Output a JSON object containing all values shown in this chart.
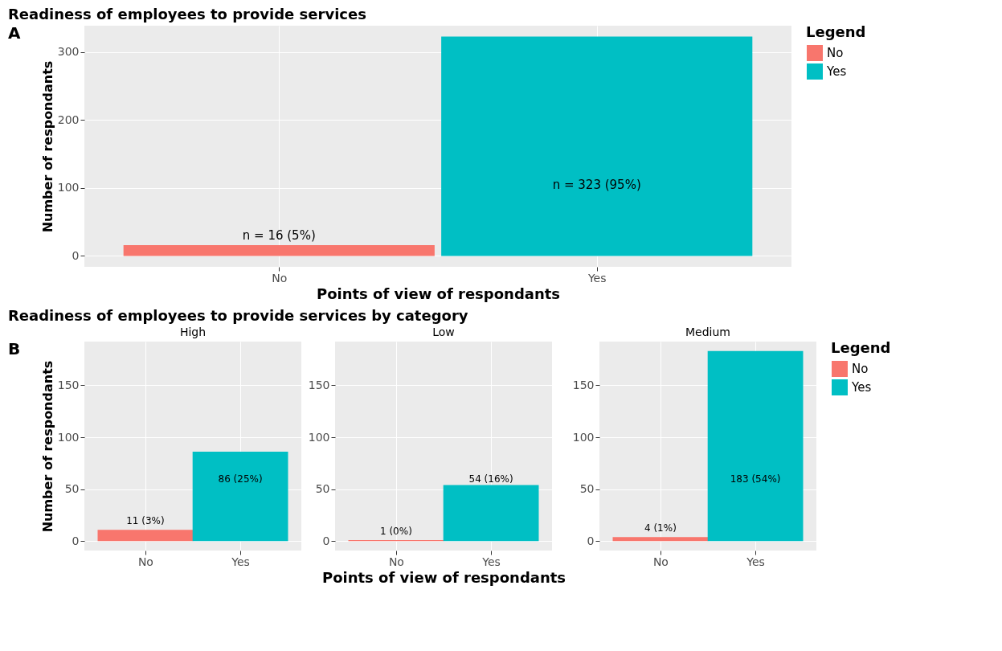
{
  "chart_data": [
    {
      "type": "bar",
      "title": "Readiness of employees to provide services",
      "annotations": [
        "A"
      ],
      "xlabel": "Points of view of respondants",
      "ylabel": "Number of respondants",
      "categories": [
        "No",
        "Yes"
      ],
      "series": [
        {
          "name": "No",
          "color": "#f8766d",
          "values": [
            16,
            null
          ],
          "value_labels": [
            "n = 16 (5%)",
            null
          ]
        },
        {
          "name": "Yes",
          "color": "#00bfc4",
          "values": [
            null,
            323
          ],
          "value_labels": [
            null,
            "n = 323 (95%)"
          ]
        }
      ],
      "ylim": [
        -16,
        339
      ],
      "yticks": [
        0,
        100,
        200,
        300
      ],
      "grid": true,
      "legend": "right",
      "legend_title": "Legend"
    },
    {
      "type": "bar",
      "title": "Readiness of employees to provide services by category",
      "subtitle": "High",
      "annotations": [
        "B"
      ],
      "ylabel": "Number of respondants",
      "categories": [
        "No",
        "Yes"
      ],
      "series": [
        {
          "color": "#f8766d",
          "values": [
            11,
            null
          ],
          "value_labels": [
            "11 (3%)",
            null
          ]
        },
        {
          "color": "#00bfc4",
          "values": [
            null,
            86
          ],
          "value_labels": [
            null,
            "86 (25%)"
          ]
        }
      ],
      "ylim": [
        -9,
        192
      ],
      "yticks": [
        0,
        50,
        100,
        150
      ],
      "grid": true
    },
    {
      "type": "bar",
      "subtitle": "Low",
      "xlabel": "Points of view of respondants",
      "categories": [
        "No",
        "Yes"
      ],
      "series": [
        {
          "color": "#f8766d",
          "values": [
            1,
            null
          ],
          "value_labels": [
            "1 (0%)",
            null
          ]
        },
        {
          "color": "#00bfc4",
          "values": [
            null,
            54
          ],
          "value_labels": [
            null,
            "54 (16%)"
          ]
        }
      ],
      "ylim": [
        -9,
        192
      ],
      "yticks": [
        0,
        50,
        100,
        150
      ],
      "grid": true
    },
    {
      "type": "bar",
      "subtitle": "Medium",
      "categories": [
        "No",
        "Yes"
      ],
      "series": [
        {
          "name": "No",
          "color": "#f8766d",
          "values": [
            4,
            null
          ],
          "value_labels": [
            "4 (1%)",
            null
          ]
        },
        {
          "name": "Yes",
          "color": "#00bfc4",
          "values": [
            null,
            183
          ],
          "value_labels": [
            null,
            "183 (54%)"
          ]
        }
      ],
      "ylim": [
        -9,
        192
      ],
      "yticks": [
        0,
        50,
        100,
        150
      ],
      "grid": true,
      "legend": "right",
      "legend_title": "Legend"
    }
  ]
}
